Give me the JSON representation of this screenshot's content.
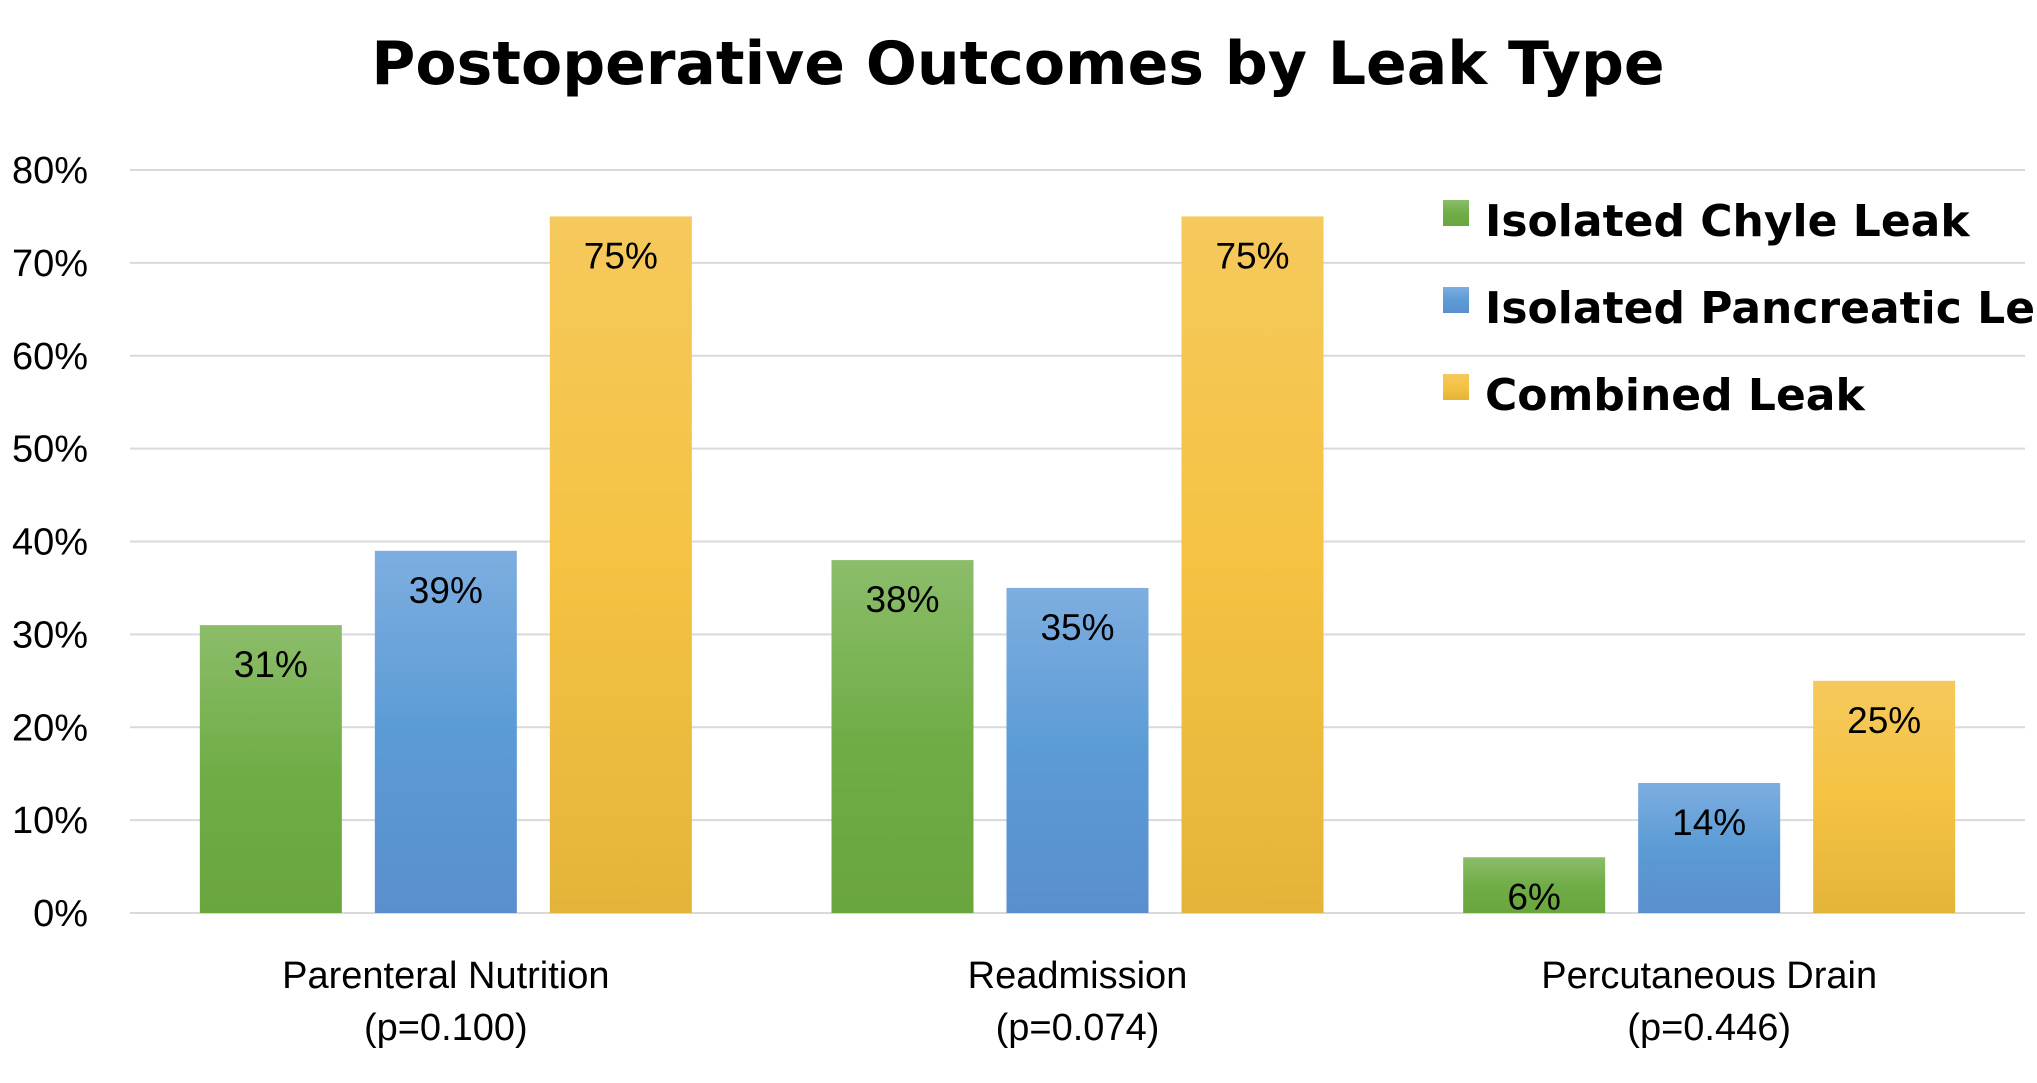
{
  "chart_data": {
    "type": "bar",
    "title": "Postoperative Outcomes by Leak Type",
    "categories": [
      {
        "name": "Parenteral Nutrition",
        "p": "(p=0.100)"
      },
      {
        "name": "Readmission",
        "p": "(p=0.074)"
      },
      {
        "name": "Percutaneous Drain",
        "p": "(p=0.446)"
      }
    ],
    "series": [
      {
        "name": "Isolated Chyle Leak",
        "values": [
          31,
          38,
          6
        ],
        "labels": [
          "31%",
          "38%",
          "6%"
        ],
        "color": "#70ad47",
        "color_light": "#8cbd6a",
        "color_dark": "#6aa53e"
      },
      {
        "name": "Isolated Pancreatic Leak",
        "values": [
          39,
          35,
          14
        ],
        "labels": [
          "39%",
          "35%",
          "14%"
        ],
        "color": "#5b9bd5",
        "color_light": "#7eaee0",
        "color_dark": "#5a8fcd"
      },
      {
        "name": "Combined Leak",
        "values": [
          75,
          75,
          25
        ],
        "labels": [
          "75%",
          "75%",
          "25%"
        ],
        "color": "#f5c242",
        "color_light": "#f5c95c",
        "color_dark": "#e4b43a"
      }
    ],
    "ylim": [
      0,
      80
    ],
    "yticks": [
      "0%",
      "10%",
      "20%",
      "30%",
      "40%",
      "50%",
      "60%",
      "70%",
      "80%"
    ],
    "ytick_values": [
      0,
      10,
      20,
      30,
      40,
      50,
      60,
      70,
      80
    ],
    "grid": true,
    "legend_position": "top-right"
  }
}
